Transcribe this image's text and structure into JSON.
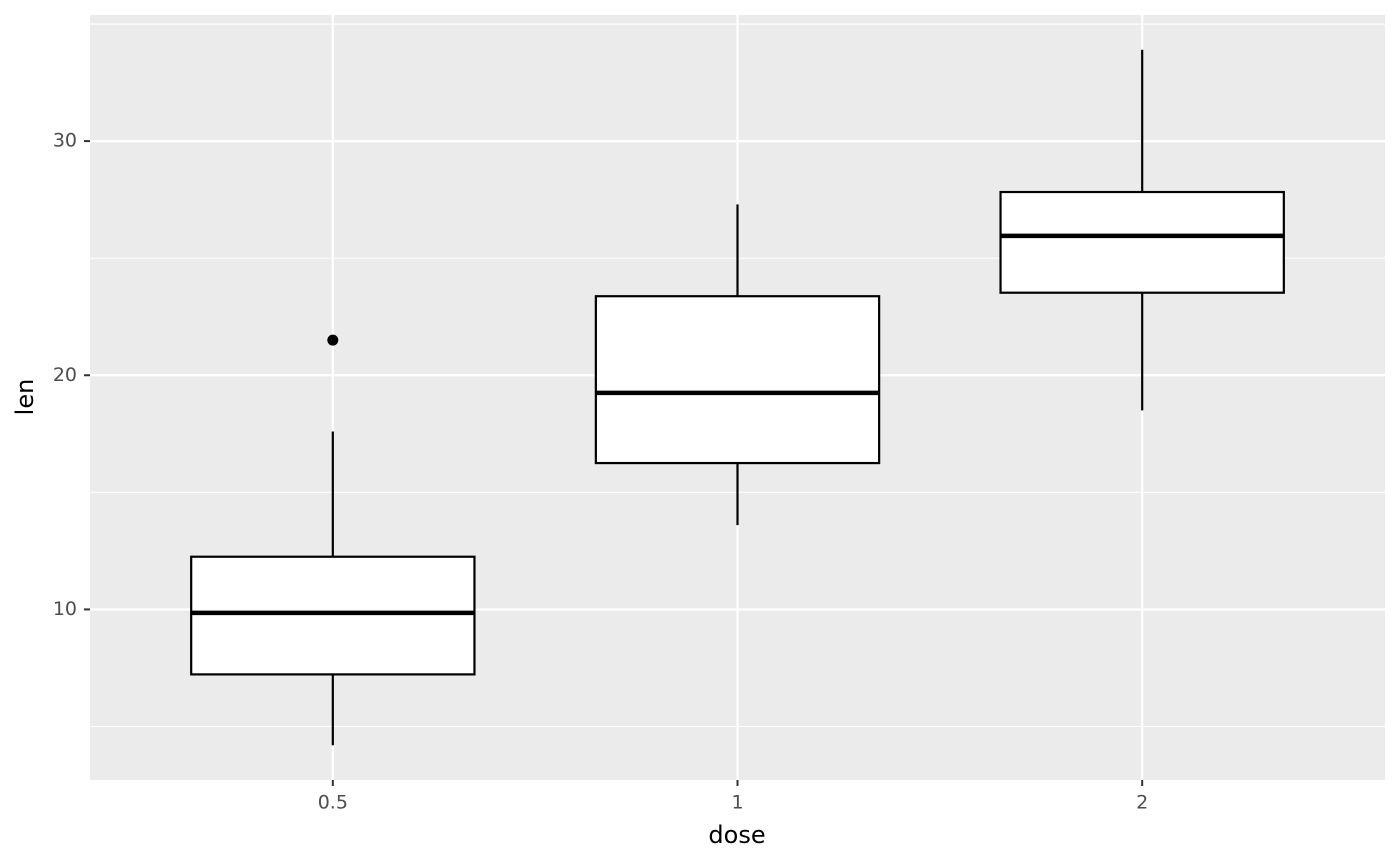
{
  "chart_data": {
    "type": "boxplot",
    "x_label": "dose",
    "y_label": "len",
    "categories": [
      "0.5",
      "1",
      "2"
    ],
    "boxes": [
      {
        "min": 4.2,
        "q1": 7.225,
        "median": 9.85,
        "q3": 12.25,
        "max": 17.6,
        "outliers": [
          21.5
        ]
      },
      {
        "min": 13.6,
        "q1": 16.25,
        "median": 19.25,
        "q3": 23.375,
        "max": 27.3,
        "outliers": []
      },
      {
        "min": 18.5,
        "q1": 23.525,
        "median": 25.95,
        "q3": 27.825,
        "max": 33.9,
        "outliers": []
      }
    ],
    "box_color": "#ffffff",
    "line_color": "#000000",
    "ylim": [
      2.715,
      35.385
    ],
    "yticks": [
      10,
      20,
      30
    ],
    "yminor_ticks": [
      5,
      15,
      25,
      35
    ],
    "grid": true,
    "panel_color": "#ebebeb"
  }
}
